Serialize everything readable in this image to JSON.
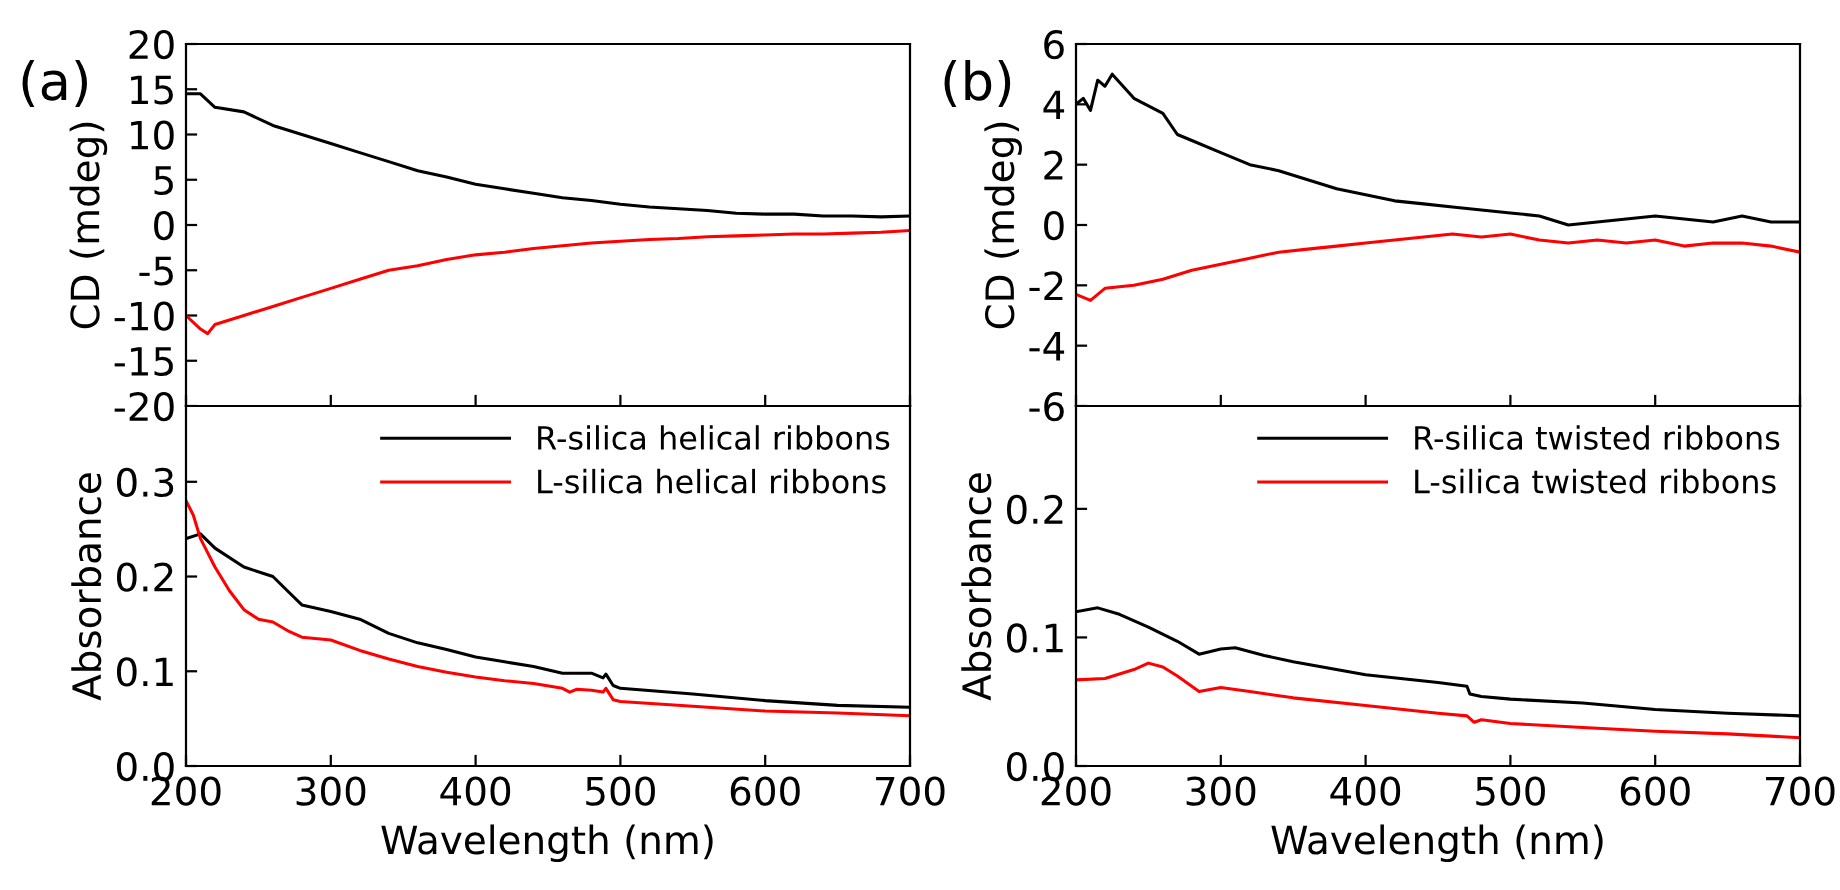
{
  "chart_data": [
    {
      "type": "line",
      "ylabel": "CD (mdeg)",
      "annotations": [
        "(a)"
      ],
      "xlim": [
        200,
        700
      ],
      "xticks": [
        200,
        300,
        400,
        500,
        600,
        700
      ],
      "ylim": [
        -20,
        20
      ],
      "yticks": [
        -20,
        -15,
        -10,
        -5,
        0,
        5,
        10,
        15,
        20
      ],
      "tick_labels": "y",
      "grid": false,
      "legend": false,
      "series": [
        {
          "color": "#000000",
          "x": [
            200,
            210,
            220,
            240,
            260,
            280,
            300,
            320,
            340,
            360,
            380,
            400,
            420,
            440,
            460,
            480,
            500,
            520,
            540,
            560,
            580,
            600,
            620,
            640,
            660,
            680,
            700
          ],
          "values": [
            14.5,
            14.5,
            13,
            12.5,
            11,
            10,
            9,
            8,
            7,
            6,
            5.3,
            4.5,
            4,
            3.5,
            3,
            2.7,
            2.3,
            2,
            1.8,
            1.6,
            1.3,
            1.2,
            1.2,
            1.0,
            1.0,
            0.9,
            1.0
          ]
        },
        {
          "color": "#ff0000",
          "x": [
            200,
            210,
            215,
            220,
            240,
            260,
            280,
            300,
            320,
            340,
            360,
            380,
            400,
            420,
            440,
            460,
            480,
            500,
            520,
            540,
            560,
            580,
            600,
            620,
            640,
            660,
            680,
            700
          ],
          "values": [
            -10,
            -11.5,
            -12,
            -11,
            -10,
            -9,
            -8,
            -7,
            -6,
            -5,
            -4.5,
            -3.8,
            -3.3,
            -3,
            -2.6,
            -2.3,
            -2,
            -1.8,
            -1.6,
            -1.5,
            -1.3,
            -1.2,
            -1.1,
            -1.0,
            -1.0,
            -0.9,
            -0.8,
            -0.6
          ]
        }
      ]
    },
    {
      "type": "line",
      "xlabel": "Wavelength (nm)",
      "ylabel": "Absorbance",
      "xlim": [
        200,
        700
      ],
      "xticks": [
        200,
        300,
        400,
        500,
        600,
        700
      ],
      "ylim": [
        0,
        0.38
      ],
      "yticks": [
        {
          "value": 0,
          "label": "0.0"
        },
        0.1,
        0.2,
        0.3
      ],
      "grid": false,
      "legend": "top right",
      "series": [
        {
          "name": "R-silica helical ribbons",
          "color": "#000000",
          "x": [
            200,
            210,
            220,
            240,
            260,
            270,
            280,
            300,
            320,
            340,
            360,
            380,
            400,
            420,
            440,
            460,
            480,
            488,
            490,
            495,
            500,
            550,
            600,
            650,
            700
          ],
          "values": [
            0.24,
            0.245,
            0.23,
            0.21,
            0.2,
            0.185,
            0.17,
            0.163,
            0.155,
            0.14,
            0.13,
            0.123,
            0.115,
            0.11,
            0.105,
            0.098,
            0.098,
            0.093,
            0.097,
            0.085,
            0.082,
            0.076,
            0.069,
            0.064,
            0.062
          ]
        },
        {
          "name": "L-silica helical ribbons",
          "color": "#ff0000",
          "x": [
            200,
            205,
            210,
            220,
            230,
            240,
            250,
            260,
            270,
            280,
            300,
            320,
            340,
            360,
            380,
            400,
            420,
            440,
            460,
            465,
            470,
            480,
            488,
            490,
            495,
            500,
            550,
            600,
            650,
            700
          ],
          "values": [
            0.28,
            0.265,
            0.24,
            0.21,
            0.185,
            0.165,
            0.155,
            0.152,
            0.143,
            0.136,
            0.133,
            0.122,
            0.113,
            0.105,
            0.099,
            0.094,
            0.09,
            0.087,
            0.082,
            0.078,
            0.081,
            0.08,
            0.078,
            0.082,
            0.07,
            0.068,
            0.063,
            0.058,
            0.056,
            0.053
          ]
        }
      ]
    },
    {
      "type": "line",
      "ylabel": "CD (mdeg)",
      "annotations": [
        "(b)"
      ],
      "xlim": [
        200,
        700
      ],
      "xticks": [
        200,
        300,
        400,
        500,
        600,
        700
      ],
      "ylim": [
        -6,
        6
      ],
      "yticks": [
        -6,
        -4,
        -2,
        0,
        2,
        4,
        6
      ],
      "tick_labels": "y",
      "grid": false,
      "legend": false,
      "series": [
        {
          "color": "#000000",
          "x": [
            200,
            205,
            210,
            215,
            220,
            225,
            240,
            260,
            270,
            280,
            300,
            320,
            340,
            360,
            380,
            400,
            420,
            440,
            460,
            480,
            500,
            520,
            540,
            560,
            580,
            600,
            620,
            640,
            660,
            680,
            700
          ],
          "values": [
            4,
            4.2,
            3.8,
            4.8,
            4.6,
            5.0,
            4.2,
            3.7,
            3.0,
            2.8,
            2.4,
            2.0,
            1.8,
            1.5,
            1.2,
            1.0,
            0.8,
            0.7,
            0.6,
            0.5,
            0.4,
            0.3,
            0.0,
            0.1,
            0.2,
            0.3,
            0.2,
            0.1,
            0.3,
            0.1,
            0.1
          ]
        },
        {
          "color": "#ff0000",
          "x": [
            200,
            210,
            220,
            240,
            260,
            280,
            300,
            320,
            340,
            360,
            380,
            400,
            420,
            440,
            460,
            480,
            500,
            520,
            540,
            560,
            580,
            600,
            620,
            640,
            660,
            680,
            700
          ],
          "values": [
            -2.3,
            -2.5,
            -2.1,
            -2.0,
            -1.8,
            -1.5,
            -1.3,
            -1.1,
            -0.9,
            -0.8,
            -0.7,
            -0.6,
            -0.5,
            -0.4,
            -0.3,
            -0.4,
            -0.3,
            -0.5,
            -0.6,
            -0.5,
            -0.6,
            -0.5,
            -0.7,
            -0.6,
            -0.6,
            -0.7,
            -0.9
          ]
        }
      ]
    },
    {
      "type": "line",
      "xlabel": "Wavelength (nm)",
      "ylabel": "Absorbance",
      "xlim": [
        200,
        700
      ],
      "xticks": [
        200,
        300,
        400,
        500,
        600,
        700
      ],
      "ylim": [
        0,
        0.28
      ],
      "yticks": [
        {
          "value": 0,
          "label": "0.0"
        },
        0.1,
        0.2
      ],
      "grid": false,
      "legend": "top right",
      "series": [
        {
          "name": "R-silica twisted ribbons",
          "color": "#000000",
          "x": [
            200,
            215,
            230,
            250,
            270,
            285,
            300,
            310,
            330,
            350,
            400,
            450,
            470,
            472,
            480,
            500,
            550,
            600,
            650,
            700
          ],
          "values": [
            0.12,
            0.123,
            0.118,
            0.108,
            0.097,
            0.087,
            0.091,
            0.092,
            0.086,
            0.081,
            0.071,
            0.065,
            0.062,
            0.056,
            0.054,
            0.052,
            0.049,
            0.044,
            0.041,
            0.039
          ]
        },
        {
          "name": "L-silica twisted ribbons",
          "color": "#ff0000",
          "x": [
            200,
            220,
            240,
            250,
            260,
            270,
            285,
            300,
            320,
            350,
            400,
            450,
            470,
            475,
            480,
            500,
            550,
            600,
            650,
            700
          ],
          "values": [
            0.067,
            0.068,
            0.075,
            0.08,
            0.077,
            0.07,
            0.058,
            0.061,
            0.058,
            0.053,
            0.047,
            0.041,
            0.039,
            0.034,
            0.036,
            0.033,
            0.03,
            0.027,
            0.025,
            0.022
          ]
        }
      ]
    }
  ]
}
